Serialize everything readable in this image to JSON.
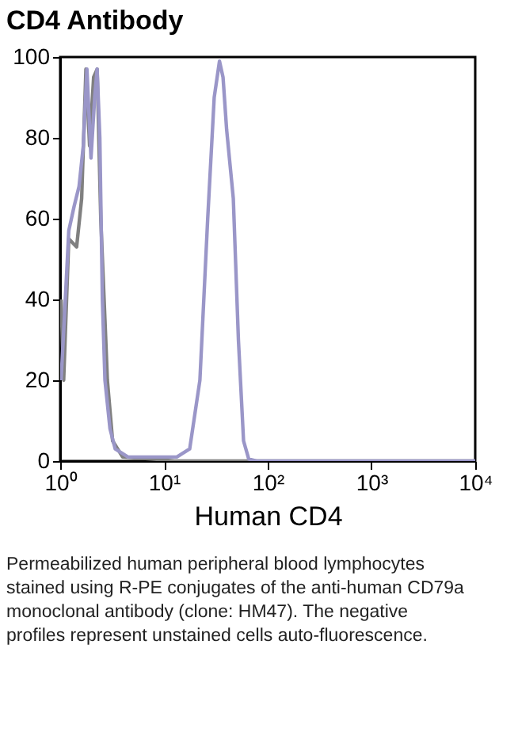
{
  "chart_data": {
    "type": "line",
    "title": "CD4 Antibody",
    "xlabel": "Human CD4",
    "log": "x",
    "xlim": [
      1,
      10000
    ],
    "xticks": [
      {
        "value": 1,
        "label": "10⁰"
      },
      {
        "value": 10,
        "label": "10¹"
      },
      {
        "value": 100,
        "label": "10²"
      },
      {
        "value": 1000,
        "label": "10³"
      },
      {
        "value": 10000,
        "label": "10⁴"
      }
    ],
    "ylim": [
      0,
      100
    ],
    "yticks": [
      0,
      20,
      40,
      60,
      80,
      100
    ],
    "grid": false,
    "legend": false,
    "marker": "none",
    "line_style": "solid",
    "series": [
      {
        "color": "#808080",
        "x": [
          1.02,
          1.08,
          1.21,
          1.44,
          1.61,
          1.77,
          1.92,
          2.1,
          2.27,
          2.46,
          2.7,
          2.85,
          3.2,
          4.0,
          8.0,
          12.6,
          10000
        ],
        "values": [
          40,
          20,
          55,
          53,
          65,
          97,
          78,
          95,
          97,
          60,
          35,
          20,
          5,
          1,
          0.5,
          0,
          0
        ]
      },
      {
        "color": "#9a96c8",
        "x": [
          1.02,
          1.12,
          1.21,
          1.36,
          1.52,
          1.67,
          1.81,
          1.98,
          2.15,
          2.27,
          2.41,
          2.55,
          2.7,
          3.02,
          3.39,
          4.5,
          10,
          13.3,
          17.7,
          22.2,
          26.4,
          30.5,
          34.3,
          37.1,
          40.2,
          46.6,
          52.2,
          58.5,
          65.6,
          77.8,
          10000
        ],
        "values": [
          20,
          40,
          57,
          63,
          68,
          78,
          97,
          75,
          90,
          97,
          80,
          40,
          20,
          8,
          3,
          1,
          1,
          1,
          3,
          20,
          60,
          90,
          99,
          95,
          82,
          65,
          30,
          5,
          0.5,
          0,
          0
        ]
      }
    ],
    "annotations": [
      "Permeabilized human peripheral blood lymphocytes stained using R-PE conjugates of the anti-human CD79a monoclonal antibody (clone: HM47). The negative profiles represent unstained cells auto-fluorescence."
    ]
  }
}
